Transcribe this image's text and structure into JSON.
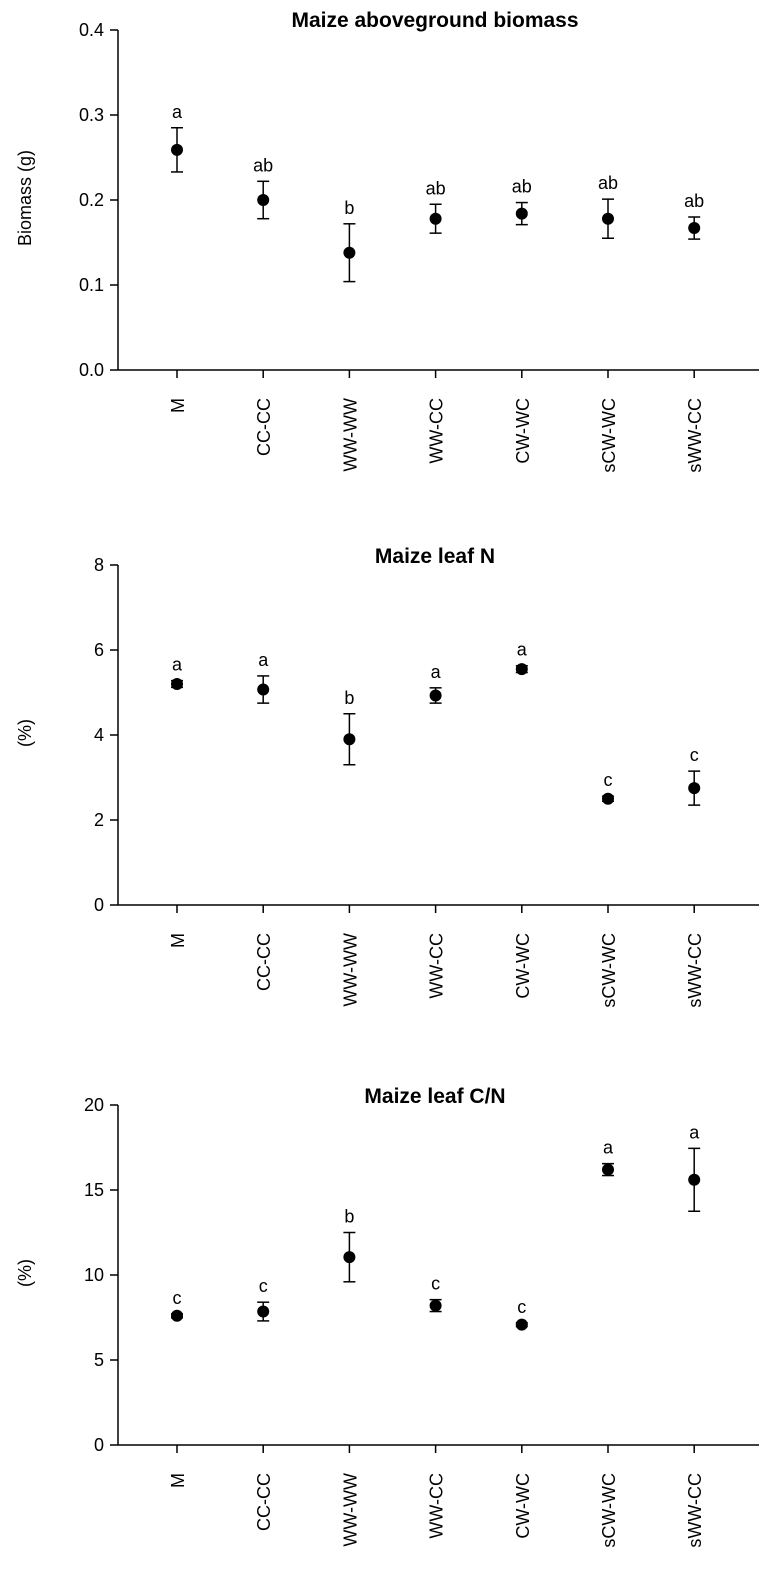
{
  "chart_data": [
    {
      "type": "scatter",
      "title": "Maize aboveground biomass",
      "ylabel": "Biomass (g)",
      "categories": [
        "M",
        "CC-CC",
        "WW-WW",
        "WW-CC",
        "CW-WC",
        "sCW-WC",
        "sWW-CC"
      ],
      "values": [
        0.259,
        0.2,
        0.138,
        0.178,
        0.184,
        0.178,
        0.167
      ],
      "lower": [
        0.233,
        0.178,
        0.104,
        0.161,
        0.171,
        0.155,
        0.154
      ],
      "upper": [
        0.285,
        0.222,
        0.172,
        0.195,
        0.197,
        0.201,
        0.18
      ],
      "letters": [
        "a",
        "ab",
        "b",
        "ab",
        "ab",
        "ab",
        "ab"
      ],
      "ylim": [
        0,
        0.4
      ],
      "yticks": [
        "0.0",
        "0.1",
        "0.2",
        "0.3",
        "0.4"
      ],
      "error_bars": true,
      "grid": false
    },
    {
      "type": "scatter",
      "title": "Maize leaf N",
      "ylabel": "(%)",
      "categories": [
        "M",
        "CC-CC",
        "WW-WW",
        "WW-CC",
        "CW-WC",
        "sCW-WC",
        "sWW-CC"
      ],
      "values": [
        5.2,
        5.07,
        3.9,
        4.93,
        5.55,
        2.5,
        2.75
      ],
      "lower": [
        5.12,
        4.75,
        3.3,
        4.75,
        5.47,
        2.44,
        2.35
      ],
      "upper": [
        5.28,
        5.39,
        4.5,
        5.11,
        5.63,
        2.56,
        3.15
      ],
      "letters": [
        "a",
        "a",
        "b",
        "a",
        "a",
        "c",
        "c"
      ],
      "ylim": [
        0,
        8
      ],
      "yticks": [
        "0",
        "2",
        "4",
        "6",
        "8"
      ],
      "error_bars": true,
      "grid": false
    },
    {
      "type": "scatter",
      "title": "Maize leaf C/N",
      "ylabel": "(%)",
      "categories": [
        "M",
        "CC-CC",
        "WW-WW",
        "WW-CC",
        "CW-WC",
        "sCW-WC",
        "sWW-CC"
      ],
      "values": [
        7.6,
        7.85,
        11.05,
        8.2,
        7.08,
        16.2,
        15.6
      ],
      "lower": [
        7.48,
        7.3,
        9.6,
        7.85,
        6.97,
        15.85,
        13.75
      ],
      "upper": [
        7.72,
        8.4,
        12.5,
        8.55,
        7.19,
        16.55,
        17.45
      ],
      "letters": [
        "c",
        "c",
        "b",
        "c",
        "c",
        "a",
        "a"
      ],
      "ylim": [
        0,
        20
      ],
      "yticks": [
        "0",
        "5",
        "10",
        "15",
        "20"
      ],
      "error_bars": true,
      "grid": false
    }
  ],
  "colors": {
    "marker": "#000000",
    "axis": "#000000"
  }
}
